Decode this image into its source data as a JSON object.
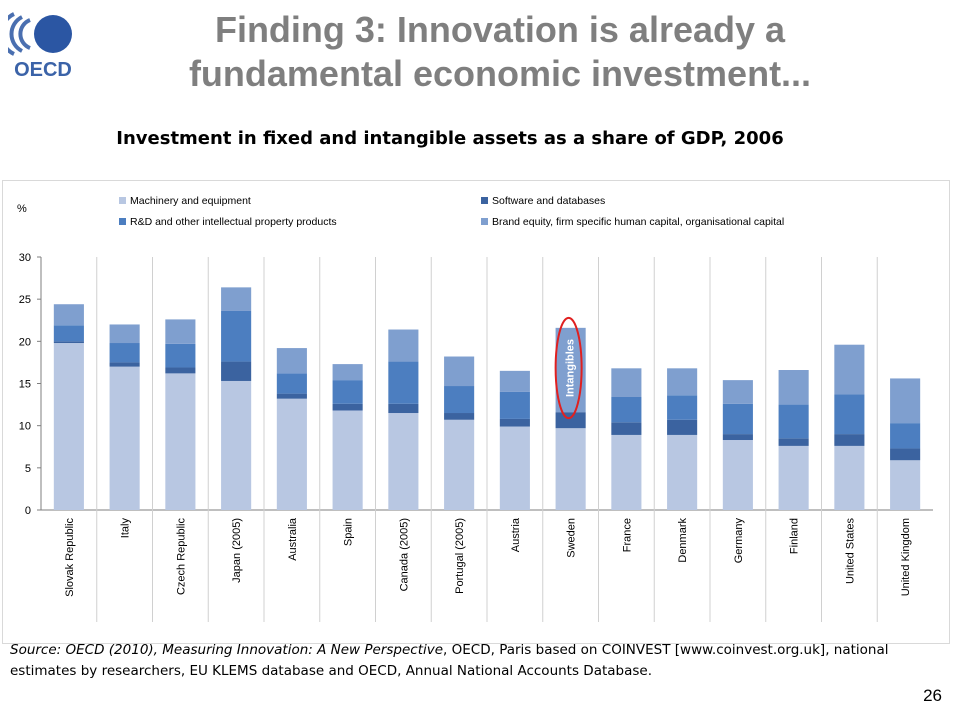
{
  "slide": {
    "title_line1": "Finding 3: Innovation is already a",
    "title_line2": "fundamental economic investment...",
    "logo_text": "OECD",
    "page_number": "26"
  },
  "chart_data": {
    "type": "bar",
    "stacked": true,
    "title": "Investment in fixed and intangible assets as a share of GDP, 2006",
    "ylabel": "%",
    "xlabel": "",
    "ylim": [
      0,
      30
    ],
    "yticks": [
      0,
      5,
      10,
      15,
      20,
      25,
      30
    ],
    "grid": false,
    "legend_position": "top",
    "categories": [
      "Slovak Republic",
      "Italy",
      "Czech Republic",
      "Japan (2005)",
      "Australia",
      "Spain",
      "Canada (2005)",
      "Portugal (2005)",
      "Austria",
      "Sweden",
      "France",
      "Denmark",
      "Germany",
      "Finland",
      "United States",
      "United Kingdom"
    ],
    "series": [
      {
        "name": "Machinery and equipment",
        "color": "#b8c7e2",
        "values": [
          19.8,
          17.0,
          16.2,
          15.3,
          13.2,
          11.8,
          11.5,
          10.7,
          9.9,
          9.7,
          8.9,
          8.9,
          8.3,
          7.6,
          7.6,
          5.9
        ]
      },
      {
        "name": "Software and databases",
        "color": "#3b63a0",
        "values": [
          0.2,
          0.5,
          0.7,
          2.3,
          0.6,
          0.8,
          1.1,
          0.8,
          0.9,
          1.9,
          1.5,
          1.8,
          0.7,
          0.9,
          1.4,
          1.4
        ]
      },
      {
        "name": "R&D and other intellectual property products",
        "color": "#4c7ec0",
        "values": [
          1.9,
          2.3,
          2.8,
          6.0,
          2.4,
          2.8,
          5.0,
          3.2,
          3.2,
          0.0,
          3.0,
          2.9,
          3.6,
          4.0,
          4.7,
          3.0
        ]
      },
      {
        "name": "Brand equity, firm specific human capital, organisational capital",
        "color": "#7f9fcf",
        "values": [
          2.5,
          2.2,
          2.9,
          2.8,
          3.0,
          1.9,
          3.8,
          3.5,
          2.5,
          10.0,
          3.4,
          3.2,
          2.8,
          4.1,
          5.9,
          5.3
        ]
      }
    ],
    "annotations": [
      {
        "category": "Sweden",
        "text": "Intangibles",
        "shape": "ellipse"
      }
    ]
  },
  "source": {
    "label": "Source:",
    "publication": "OECD (2010), Measuring Innovation: A New Perspective",
    "rest": ", OECD, Paris based on COINVEST [www.coinvest.org.uk], national estimates by researchers, EU KLEMS database and OECD, Annual National Accounts Database."
  }
}
